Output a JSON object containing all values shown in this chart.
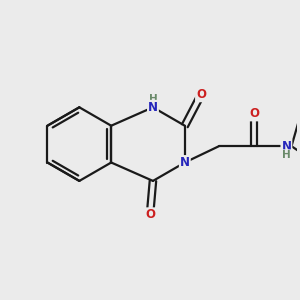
{
  "background_color": "#ebebeb",
  "bond_color": "#1a1a1a",
  "bond_width": 1.6,
  "atom_colors": {
    "N": "#2525bb",
    "O": "#cc2020",
    "C": "#1a1a1a",
    "H": "#6a8a6a"
  },
  "font_size": 8.5,
  "fig_size": [
    3.0,
    3.0
  ],
  "dpi": 100
}
